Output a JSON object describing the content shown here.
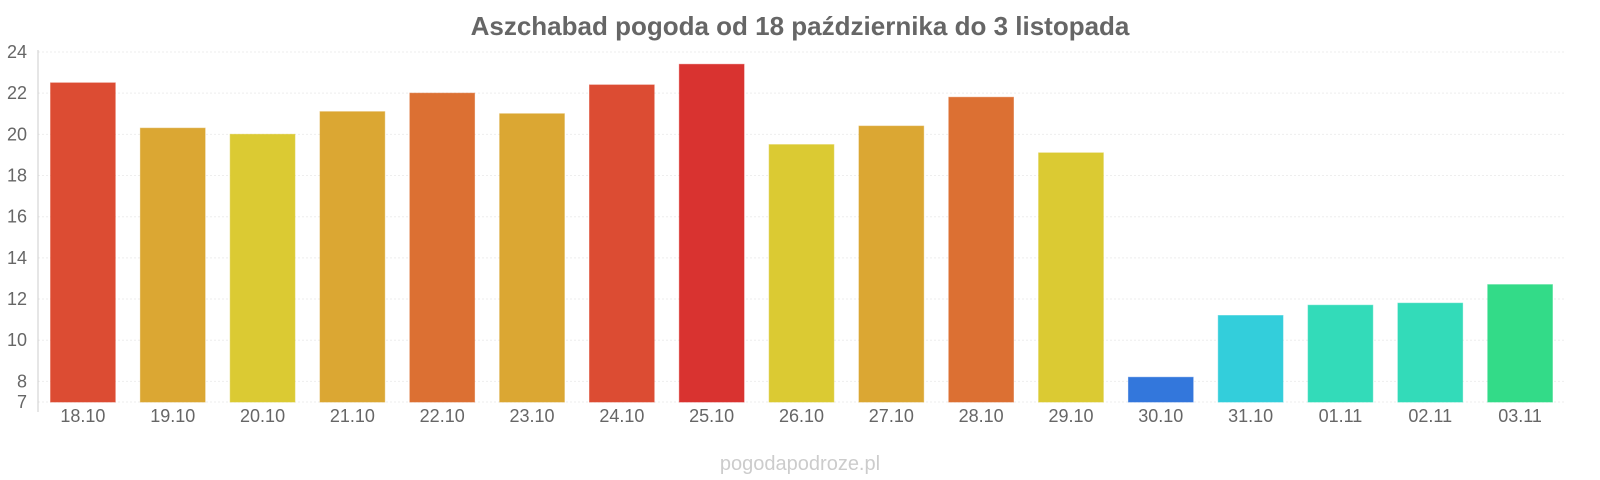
{
  "chart_data": {
    "type": "bar",
    "title": "Aszchabad pogoda od 18 października do 3 listopada",
    "xlabel": "",
    "ylabel": "",
    "ylim": [
      7,
      24
    ],
    "yticks": [
      "7",
      "8",
      "10",
      "12",
      "14",
      "16",
      "18",
      "20",
      "22",
      "24"
    ],
    "grid": true,
    "categories": [
      "18.10",
      "19.10",
      "20.10",
      "21.10",
      "22.10",
      "23.10",
      "24.10",
      "25.10",
      "26.10",
      "27.10",
      "28.10",
      "29.10",
      "30.10",
      "31.10",
      "01.11",
      "02.11",
      "03.11"
    ],
    "values": [
      22.5,
      20.3,
      20.0,
      21.1,
      22.0,
      21.0,
      22.4,
      23.4,
      19.5,
      20.4,
      21.8,
      19.1,
      8.2,
      11.2,
      11.7,
      11.8,
      12.7
    ],
    "colors": [
      "#dc4c33",
      "#dba733",
      "#dbca33",
      "#dba733",
      "#dc7033",
      "#dba733",
      "#dc4c33",
      "#d93330",
      "#dbca33",
      "#dba733",
      "#dc7033",
      "#dbca33",
      "#3377dc",
      "#33cedb",
      "#33dbb9",
      "#33dbb9",
      "#33db88"
    ]
  },
  "watermark": "pogodapodroze.pl"
}
